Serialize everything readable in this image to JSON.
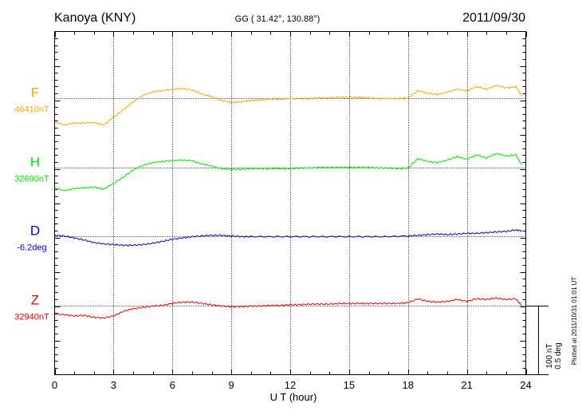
{
  "header": {
    "station": "Kanoya (KNY)",
    "coords": "GG ( 31.42°, 130.88°)",
    "date": "2011/09/30"
  },
  "footer": {
    "plotted": "Plotted at 2011/10/31 01:01 UT"
  },
  "scale_bar": {
    "nT": "100 nT",
    "deg": "0.5 deg"
  },
  "chart_data": {
    "type": "line",
    "title": "",
    "xlabel": "U T (hour)",
    "xlim": [
      0,
      24
    ],
    "xticks": [
      "0",
      "3",
      "6",
      "9",
      "12",
      "15",
      "18",
      "21",
      "24"
    ],
    "grid": true,
    "series": [
      {
        "name": "F",
        "baseline_label": "46410nT",
        "color": "#f5a800",
        "baseline_value": 46410,
        "x": [
          0,
          0.5,
          1,
          1.5,
          2,
          2.5,
          3,
          3.5,
          4,
          4.5,
          5,
          5.5,
          6,
          6.5,
          7,
          7.5,
          8,
          8.5,
          9,
          9.5,
          10,
          10.5,
          11,
          11.5,
          12,
          12.5,
          13,
          13.5,
          14,
          14.5,
          15,
          15.5,
          16,
          16.5,
          17,
          17.5,
          18,
          18.5,
          19,
          19.5,
          20,
          20.5,
          21,
          21.5,
          22,
          22.5,
          23,
          23.5,
          23.8
        ],
        "values": [
          -35,
          -40,
          -37,
          -37,
          -36,
          -40,
          -28,
          -17,
          -5,
          5,
          10,
          12,
          14,
          15,
          13,
          7,
          3,
          -3,
          -6,
          -5,
          -3,
          -2,
          -1,
          -1,
          0,
          0,
          0,
          1,
          1,
          2,
          2,
          2,
          1,
          0,
          0,
          0,
          1,
          12,
          8,
          6,
          10,
          14,
          12,
          18,
          14,
          20,
          16,
          18,
          4
        ]
      },
      {
        "name": "H",
        "baseline_label": "32690nT",
        "color": "#00e000",
        "baseline_value": 32690,
        "x": [
          0,
          0.5,
          1,
          1.5,
          2,
          2.5,
          3,
          3.5,
          4,
          4.5,
          5,
          5.5,
          6,
          6.5,
          7,
          7.5,
          8,
          8.5,
          9,
          9.5,
          10,
          10.5,
          11,
          11.5,
          12,
          12.5,
          13,
          13.5,
          14,
          14.5,
          15,
          15.5,
          16,
          16.5,
          17,
          17.5,
          18,
          18.5,
          19,
          19.5,
          20,
          20.5,
          21,
          21.5,
          22,
          22.5,
          23,
          23.5,
          23.8
        ],
        "values": [
          -30,
          -34,
          -31,
          -30,
          -29,
          -32,
          -23,
          -14,
          -3,
          4,
          8,
          10,
          11,
          12,
          11,
          6,
          3,
          -1,
          -2,
          -2,
          -1,
          -1,
          -1,
          -1,
          -1,
          0,
          0,
          1,
          1,
          1,
          1,
          1,
          1,
          0,
          0,
          -1,
          0,
          14,
          10,
          8,
          12,
          17,
          13,
          20,
          15,
          22,
          18,
          20,
          4
        ]
      },
      {
        "name": "D",
        "baseline_label": "-6.2deg",
        "color": "#0000cc",
        "baseline_value": -6.2,
        "x": [
          0,
          0.5,
          1,
          1.5,
          2,
          2.5,
          3,
          3.5,
          4,
          4.5,
          5,
          5.5,
          6,
          6.5,
          7,
          7.5,
          8,
          8.5,
          9,
          9.5,
          10,
          11,
          12,
          13,
          14,
          15,
          16,
          17,
          18,
          18.5,
          19,
          19.5,
          20,
          20.5,
          21,
          21.5,
          22,
          22.5,
          23,
          23.5,
          23.8
        ],
        "values": [
          2,
          1,
          -2,
          -5,
          -9,
          -11,
          -12,
          -13,
          -13,
          -12,
          -10,
          -7,
          -4,
          -2,
          0,
          1,
          2,
          2,
          1,
          0,
          0,
          0,
          0,
          0,
          0,
          0,
          0,
          0,
          1,
          2,
          3,
          4,
          3,
          4,
          5,
          5,
          6,
          7,
          8,
          10,
          9
        ]
      },
      {
        "name": "Z",
        "baseline_label": "32940nT",
        "color": "#e00000",
        "baseline_value": 32940,
        "x": [
          0,
          0.5,
          1,
          1.5,
          2,
          2.5,
          3,
          3.5,
          4,
          4.5,
          5,
          5.5,
          6,
          6.5,
          7,
          7.5,
          8,
          8.5,
          9,
          9.5,
          10,
          10.5,
          11,
          11.5,
          12,
          12.5,
          13,
          13.5,
          14,
          14.5,
          15,
          15.5,
          16,
          16.5,
          17,
          17.5,
          18,
          18.5,
          19,
          19.5,
          20,
          20.5,
          21,
          21.5,
          22,
          22.5,
          23,
          23.5,
          23.8
        ],
        "values": [
          -12,
          -13,
          -15,
          -14,
          -17,
          -18,
          -15,
          -8,
          -4,
          -2,
          0,
          1,
          4,
          6,
          6,
          4,
          2,
          0,
          -1,
          -1,
          0,
          0,
          1,
          1,
          2,
          2,
          3,
          3,
          3,
          4,
          4,
          4,
          4,
          4,
          4,
          4,
          5,
          11,
          7,
          6,
          7,
          10,
          7,
          11,
          10,
          12,
          10,
          11,
          0
        ]
      }
    ]
  }
}
